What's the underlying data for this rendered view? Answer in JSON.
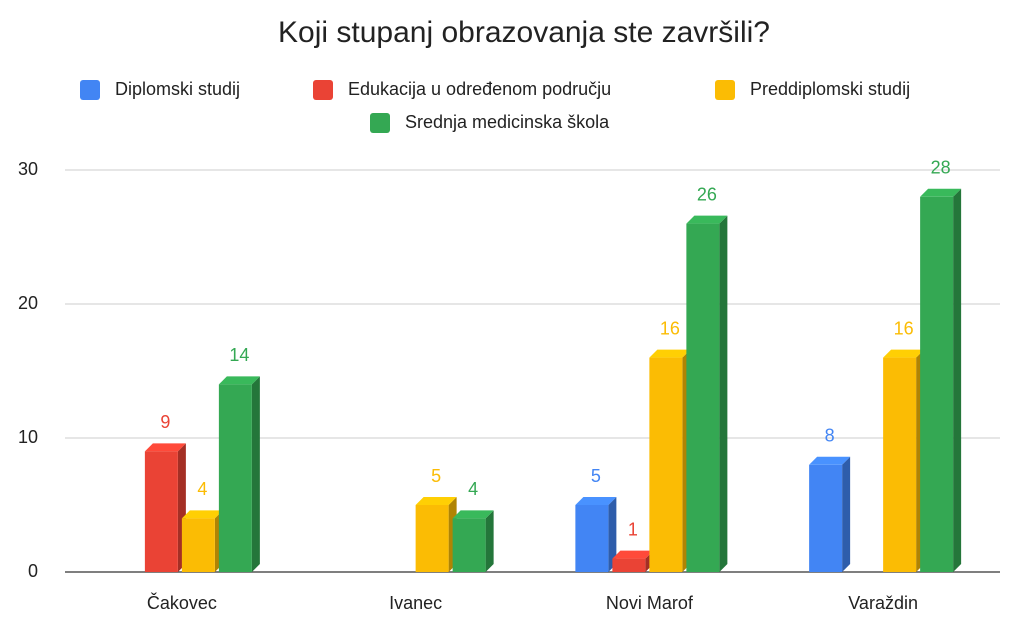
{
  "chart_data": {
    "type": "bar3d",
    "title": "Koji stupanj obrazovanja ste završili?",
    "categories": [
      "Čakovec",
      "Ivanec",
      "Novi Marof",
      "Varaždin"
    ],
    "series": [
      {
        "name": "Diplomski studij",
        "color": "#4285f4",
        "values": [
          null,
          null,
          5,
          8
        ]
      },
      {
        "name": "Edukacija u određenom području",
        "color": "#ea4335",
        "values": [
          9,
          null,
          1,
          null
        ]
      },
      {
        "name": "Preddiplomski studij",
        "color": "#fbbc04",
        "values": [
          4,
          5,
          16,
          16
        ]
      },
      {
        "name": "Srednja medicinska škola",
        "color": "#34a853",
        "values": [
          14,
          4,
          26,
          28
        ]
      }
    ],
    "ylim": [
      0,
      30
    ],
    "yticks": [
      0,
      10,
      20,
      30
    ],
    "grid": true,
    "legend": "top"
  }
}
